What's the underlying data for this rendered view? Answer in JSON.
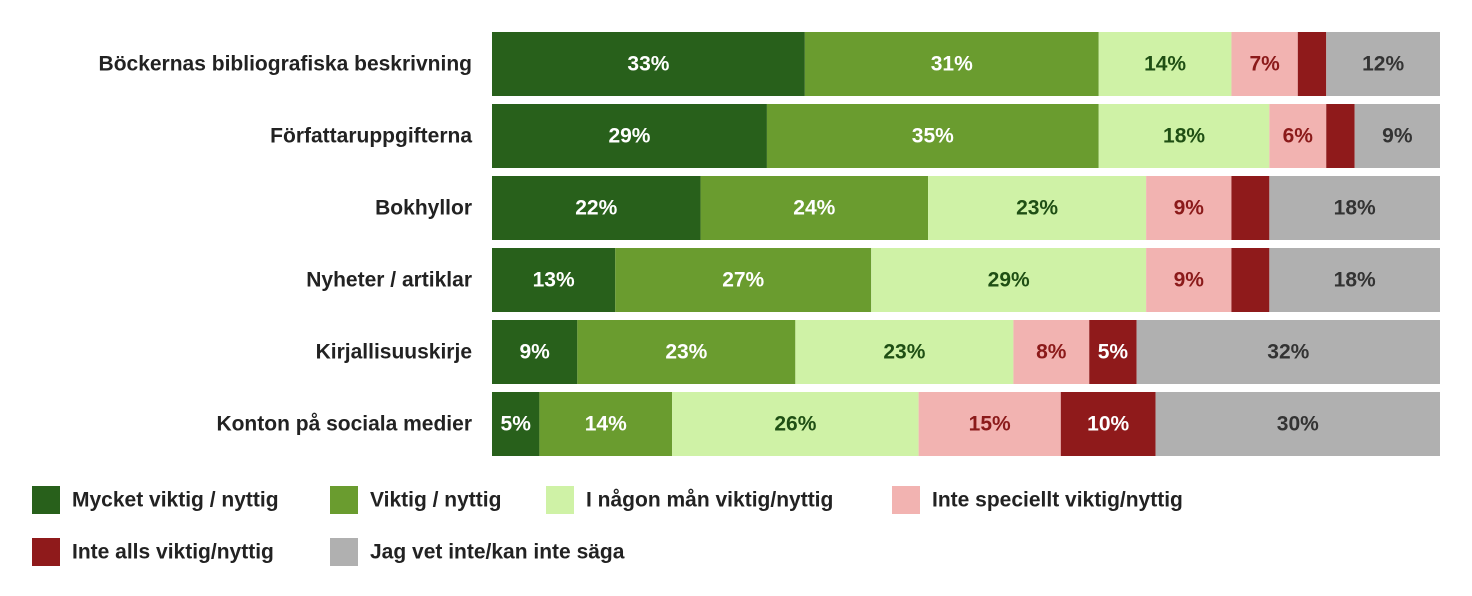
{
  "chart_data": {
    "type": "bar",
    "orientation": "horizontal",
    "stacked": true,
    "xlim": [
      0,
      100
    ],
    "grid": false,
    "legend_position": "bottom",
    "categories": [
      "Böckernas bibliografiska beskrivning",
      "Författaruppgifterna",
      "Bokhyllor",
      "Nyheter / artiklar",
      "Kirjallisuuskirje",
      "Konton på sociala medier"
    ],
    "series": [
      {
        "name": "Mycket viktig / nyttig",
        "color": "#28601b",
        "label_color": "#ffffff",
        "values": [
          33,
          29,
          22,
          13,
          9,
          5
        ]
      },
      {
        "name": "Viktig / nyttig",
        "color": "#6a9c2f",
        "label_color": "#ffffff",
        "values": [
          31,
          35,
          24,
          27,
          23,
          14
        ]
      },
      {
        "name": "I någon mån viktig/nyttig",
        "color": "#cff2a6",
        "label_color": "#1f4f14",
        "values": [
          14,
          18,
          23,
          29,
          23,
          26
        ]
      },
      {
        "name": "Inte speciellt viktig/nyttig",
        "color": "#f2b3b1",
        "label_color": "#8b1a1a",
        "values": [
          7,
          6,
          9,
          9,
          8,
          15
        ]
      },
      {
        "name": "Inte alls viktig/nyttig",
        "color": "#8f1a1b",
        "label_color": "#ffffff",
        "values": [
          3,
          3,
          4,
          4,
          5,
          10
        ]
      },
      {
        "name": "Jag vet inte/kan inte säga",
        "color": "#b0b0b0",
        "label_color": "#333333",
        "values": [
          12,
          9,
          18,
          18,
          32,
          30
        ]
      }
    ],
    "labels": [
      [
        "33%",
        "31%",
        "14%",
        "7%",
        "",
        "12%"
      ],
      [
        "29%",
        "35%",
        "18%",
        "6%",
        "",
        "9%"
      ],
      [
        "22%",
        "24%",
        "23%",
        "9%",
        "",
        "18%"
      ],
      [
        "13%",
        "27%",
        "29%",
        "9%",
        "",
        "18%"
      ],
      [
        "9%",
        "23%",
        "23%",
        "8%",
        "5%",
        "32%"
      ],
      [
        "5%",
        "14%",
        "26%",
        "15%",
        "10%",
        "30%"
      ]
    ]
  }
}
